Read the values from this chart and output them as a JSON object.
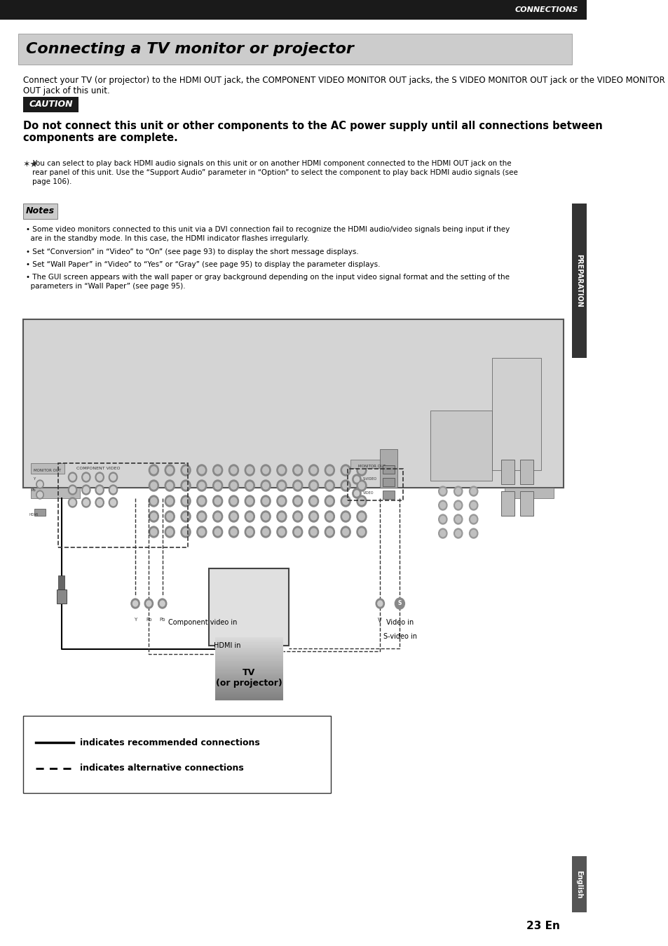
{
  "page_bg": "#ffffff",
  "header_bar_color": "#1a1a1a",
  "header_text": "CONNECTIONS",
  "header_text_color": "#ffffff",
  "title_bg": "#cccccc",
  "title_text": "Connecting a TV monitor or projector",
  "title_text_color": "#000000",
  "intro_text": "Connect your TV (or projector) to the HDMI OUT jack, the COMPONENT VIDEO MONITOR OUT jacks, the S VIDEO MONITOR OUT jack or the VIDEO MONITOR OUT jack of this unit.",
  "caution_bg": "#1a1a1a",
  "caution_text": "CAUTION",
  "caution_text_color": "#ffffff",
  "bold_warning": "Do not connect this unit or other components to the AC power supply until all connections between components are complete.",
  "tip_symbol": "★✦",
  "tip_text": "You can select to play back HDMI audio signals on this unit or on another HDMI component connected to the HDMI OUT jack on the\nrear panel of this unit. Use the “Support Audio” parameter in “Option” to select the component to play back HDMI audio signals (see\npage 106).",
  "notes_bg": "#cccccc",
  "notes_text": "Notes",
  "bullet_notes": [
    "Some video monitors connected to this unit via a DVI connection fail to recognize the HDMI audio/video signals being input if they\n  are in the standby mode. In this case, the HDMI indicator flashes irregularly.",
    "Set “Conversion” in “Video” to “On” (see page 93) to display the short message displays.",
    "Set “Wall Paper” in “Video” to “Yes” or “Gray” (see page 95) to display the parameter displays.",
    "The GUI screen appears with the wall paper or gray background depending on the input video signal format and the setting of the\n  parameters in “Wall Paper” (see page 95)."
  ],
  "side_label": "PREPARATION",
  "side_label_color": "#ffffff",
  "side_label_bg": "#333333",
  "legend_solid_label": "indicates recommended connections",
  "legend_dashed_label": "indicates alternative connections",
  "bottom_side_label": "English",
  "bottom_side_label_bg": "#555555",
  "page_number": "23 En",
  "tv_label": "TV\n(or projector)",
  "component_label": "Component video in",
  "hdmi_label": "HDMI in",
  "video_label": "Video in",
  "svideo_label": "S-video in"
}
